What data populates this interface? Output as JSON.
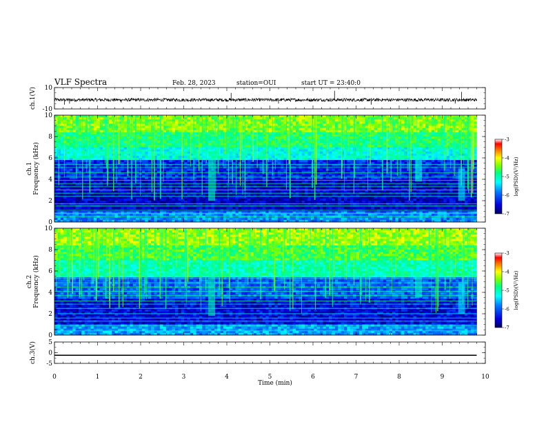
{
  "header": {
    "title": "VLF Spectra",
    "date": "Feb. 28, 2023",
    "station": "station=OUI",
    "start": "start UT = 23:40:0"
  },
  "chart_data": [
    {
      "type": "line",
      "name": "waveform-ch1",
      "ylabel": "ch.1(V)",
      "ylim": [
        -10,
        10
      ],
      "yticks": [
        "10",
        "-10"
      ],
      "x_range": [
        0,
        10
      ],
      "x_unit": "min",
      "data_end": 9.8,
      "baseline": -1.5,
      "noise_amplitude": 1.5,
      "spikes": [
        {
          "x": 0.23,
          "y": -6
        },
        {
          "x": 0.35,
          "y": -5
        },
        {
          "x": 1.55,
          "y": -4
        },
        {
          "x": 4.1,
          "y": 5
        },
        {
          "x": 5.2,
          "y": -5
        },
        {
          "x": 6.5,
          "y": 7
        },
        {
          "x": 7.35,
          "y": -6
        },
        {
          "x": 9.3,
          "y": -5
        },
        {
          "x": 9.45,
          "y": 6
        }
      ]
    },
    {
      "type": "heatmap",
      "name": "spectrogram-ch1",
      "ylabel": "ch.1\nFrequency (kHz)",
      "ylim": [
        0,
        10
      ],
      "yticks": [
        "0",
        "2",
        "4",
        "6",
        "8",
        "10"
      ],
      "x_range": [
        0,
        10
      ],
      "data_end": 9.8,
      "colorbar": {
        "label": "log(PSD)(V²/Hz)",
        "range": [
          -7,
          -3
        ],
        "ticks": [
          "-3",
          "-4",
          "-5",
          "-6",
          "-7"
        ],
        "colors": [
          "#000060",
          "#0000e0",
          "#0080ff",
          "#00ffff",
          "#00ff80",
          "#80ff00",
          "#ffff00",
          "#ff8000",
          "#ff0000",
          "#ffffff"
        ]
      },
      "bands": [
        {
          "f_low": 0,
          "f_high": 1.0,
          "log_psd": -5.8
        },
        {
          "f_low": 1.0,
          "f_high": 4.0,
          "log_psd": -6.6
        },
        {
          "f_low": 4.0,
          "f_high": 5.8,
          "log_psd": -6.3
        },
        {
          "f_low": 5.8,
          "f_high": 7.0,
          "log_psd": -5.2
        },
        {
          "f_low": 7.0,
          "f_high": 8.5,
          "log_psd": -4.8
        },
        {
          "f_low": 8.5,
          "f_high": 10.0,
          "log_psd": -4.4
        }
      ],
      "tones_khz": [
        0.5,
        0.8,
        1.1,
        1.5,
        1.7,
        2.4,
        2.7,
        3.0,
        3.3,
        3.6,
        3.9,
        4.2,
        4.6,
        5.1,
        5.4
      ],
      "events": [
        {
          "t": 3.65,
          "f_low": 2.0,
          "f_high": 6.0,
          "log_psd": -5.0
        },
        {
          "t": 8.45,
          "f_low": 3.8,
          "f_high": 5.8,
          "log_psd": -5.2
        },
        {
          "t": 9.45,
          "f_low": 2.0,
          "f_high": 5.0,
          "log_psd": -5.4
        }
      ]
    },
    {
      "type": "heatmap",
      "name": "spectrogram-ch2",
      "ylabel": "ch.2\nFrequency (kHz)",
      "ylim": [
        0,
        10
      ],
      "yticks": [
        "0",
        "2",
        "4",
        "6",
        "8",
        "10"
      ],
      "x_range": [
        0,
        10
      ],
      "data_end": 9.8,
      "colorbar": {
        "label": "log(PSD)(V²/Hz)",
        "range": [
          -7,
          -3
        ],
        "ticks": [
          "-3",
          "-4",
          "-5",
          "-6",
          "-7"
        ],
        "colors": [
          "#000060",
          "#0000e0",
          "#0080ff",
          "#00ffff",
          "#00ff80",
          "#80ff00",
          "#ffff00",
          "#ff8000",
          "#ff0000",
          "#ffffff"
        ]
      },
      "bands": [
        {
          "f_low": 0,
          "f_high": 1.0,
          "log_psd": -5.7
        },
        {
          "f_low": 1.0,
          "f_high": 3.5,
          "log_psd": -6.5
        },
        {
          "f_low": 3.5,
          "f_high": 5.5,
          "log_psd": -6.0
        },
        {
          "f_low": 5.5,
          "f_high": 7.0,
          "log_psd": -5.0
        },
        {
          "f_low": 7.0,
          "f_high": 8.5,
          "log_psd": -4.6
        },
        {
          "f_low": 8.5,
          "f_high": 10.0,
          "log_psd": -4.3
        }
      ],
      "tones_khz": [
        0.4,
        0.9,
        1.3,
        1.6,
        2.0,
        2.5,
        2.9,
        3.2,
        3.7,
        4.1,
        4.5,
        4.9,
        5.3,
        5.7
      ],
      "events": [
        {
          "t": 3.65,
          "f_low": 1.8,
          "f_high": 7.0,
          "log_psd": -5.0
        },
        {
          "t": 8.45,
          "f_low": 3.5,
          "f_high": 6.0,
          "log_psd": -5.1
        },
        {
          "t": 9.45,
          "f_low": 2.0,
          "f_high": 5.0,
          "log_psd": -5.4
        }
      ]
    },
    {
      "type": "line",
      "name": "waveform-ch3",
      "ylabel": "ch.3(V)",
      "ylim": [
        -5,
        5
      ],
      "yticks": [
        "5",
        "0",
        "-5"
      ],
      "x_range": [
        0,
        10
      ],
      "data_end": 9.8,
      "baseline": -1.2,
      "noise_amplitude": 0.25,
      "xlabel": "Time (min)",
      "xticks": [
        "0",
        "1",
        "2",
        "3",
        "4",
        "5",
        "6",
        "7",
        "8",
        "9",
        "10"
      ]
    }
  ]
}
